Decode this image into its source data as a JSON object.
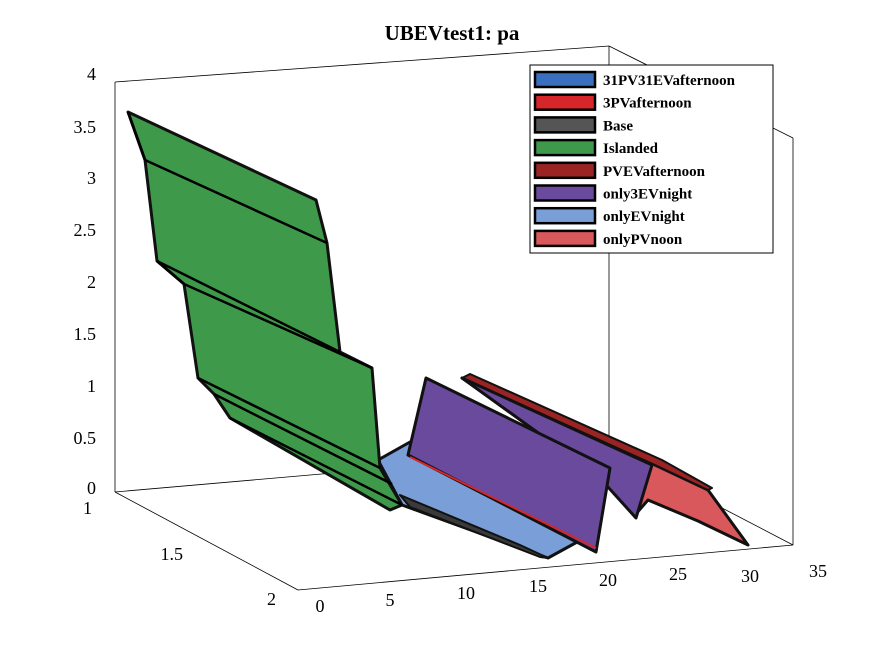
{
  "chart_data": {
    "type": "surface-3d",
    "title": "UBEVtest1: pa",
    "xlabel": "",
    "ylabel": "",
    "zlabel": "",
    "x_ticks": [
      "0",
      "5",
      "10",
      "15",
      "20",
      "25",
      "30",
      "35"
    ],
    "y_ticks": [
      "1",
      "1.5",
      "2"
    ],
    "z_ticks": [
      "0",
      "0.5",
      "1",
      "1.5",
      "2",
      "2.5",
      "3",
      "3.5",
      "4"
    ],
    "xlim": [
      0,
      35
    ],
    "ylim": [
      1,
      2
    ],
    "zlim": [
      0,
      4
    ],
    "legend_position": "top-right",
    "grid": false,
    "series": [
      {
        "name": "31PV31EVafternoon",
        "color": "#3a6ebf"
      },
      {
        "name": "3PVafternoon",
        "color": "#d7262a"
      },
      {
        "name": "Base",
        "color": "#555555"
      },
      {
        "name": "Islanded",
        "color": "#3e9a4a"
      },
      {
        "name": "PVEVafternoon",
        "color": "#9a2323"
      },
      {
        "name": "only3EVnight",
        "color": "#6a4a9c"
      },
      {
        "name": "onlyEVnight",
        "color": "#7a9ed8"
      },
      {
        "name": "onlyPVnoon",
        "color": "#d9585b"
      }
    ],
    "islanded_profile": {
      "x": [
        0,
        1,
        3,
        4,
        6,
        7,
        8,
        9,
        10,
        11,
        12,
        13,
        14
      ],
      "z": [
        3.65,
        3.2,
        2.18,
        2.1,
        1.0,
        0.85,
        0.7,
        0.55,
        0.4,
        0.3,
        0.2,
        0.1,
        0.05
      ]
    }
  }
}
